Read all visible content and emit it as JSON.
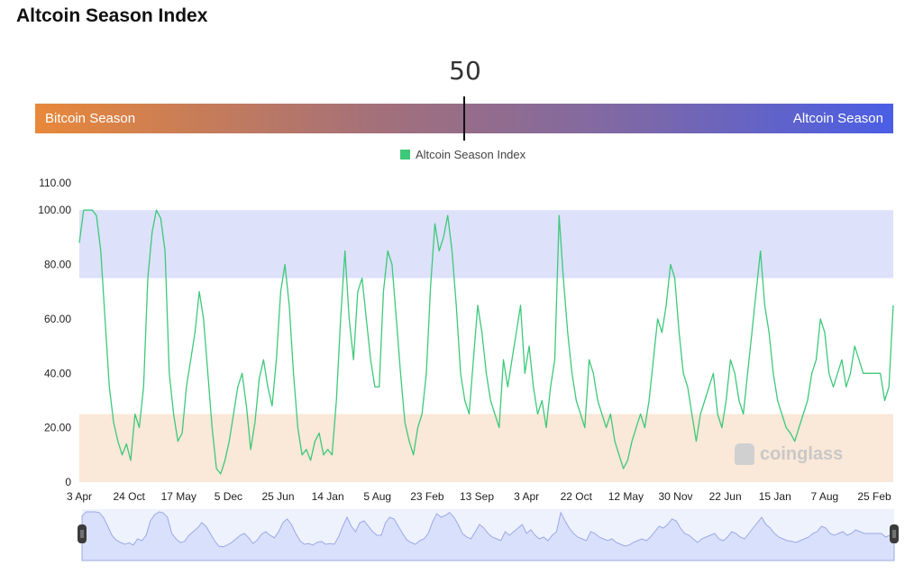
{
  "title": "Altcoin Season Index",
  "gauge": {
    "value": "50",
    "value_num": 50,
    "left_label": "Bitcoin Season",
    "right_label": "Altcoin Season"
  },
  "watermark": "coinglass",
  "colors": {
    "line": "#3ec97a",
    "altcoin_zone": "#dde1fa",
    "bitcoin_zone": "#fae8d8",
    "navigator_fill": "#eef2fd",
    "navigator_line": "#9aa9e6"
  },
  "chart_data": {
    "type": "line",
    "title": "",
    "xlabel": "",
    "ylabel": "",
    "ylim": [
      0,
      110
    ],
    "y_ticks": [
      "0",
      "20.00",
      "40.00",
      "60.00",
      "80.00",
      "100.00",
      "110.00"
    ],
    "x_ticks": [
      "3 Apr",
      "24 Oct",
      "17 May",
      "5 Dec",
      "25 Jun",
      "14 Jan",
      "5 Aug",
      "23 Feb",
      "13 Sep",
      "3 Apr",
      "22 Oct",
      "12 May",
      "30 Nov",
      "22 Jun",
      "15 Jan",
      "7 Aug",
      "25 Feb"
    ],
    "bands": [
      {
        "label": "altcoin-season-zone",
        "from": 75,
        "to": 100
      },
      {
        "label": "bitcoin-season-zone",
        "from": 0,
        "to": 25
      }
    ],
    "series": [
      {
        "name": "Altcoin Season Index",
        "values": [
          88,
          100,
          100,
          100,
          98,
          85,
          60,
          35,
          22,
          15,
          10,
          14,
          8,
          25,
          20,
          35,
          75,
          92,
          100,
          97,
          85,
          40,
          25,
          15,
          18,
          35,
          45,
          55,
          70,
          60,
          40,
          20,
          5,
          3,
          8,
          15,
          25,
          35,
          40,
          28,
          12,
          22,
          38,
          45,
          35,
          28,
          45,
          70,
          80,
          65,
          40,
          20,
          10,
          12,
          8,
          15,
          18,
          10,
          12,
          10,
          30,
          60,
          85,
          60,
          45,
          70,
          75,
          60,
          45,
          35,
          35,
          70,
          85,
          80,
          60,
          40,
          22,
          15,
          10,
          20,
          25,
          40,
          72,
          95,
          85,
          90,
          98,
          85,
          65,
          40,
          30,
          25,
          45,
          65,
          55,
          40,
          30,
          25,
          20,
          45,
          35,
          45,
          55,
          65,
          40,
          50,
          35,
          25,
          30,
          20,
          35,
          45,
          98,
          75,
          55,
          40,
          30,
          25,
          20,
          45,
          40,
          30,
          25,
          20,
          25,
          15,
          10,
          5,
          8,
          15,
          20,
          25,
          20,
          30,
          45,
          60,
          55,
          65,
          80,
          75,
          55,
          40,
          35,
          25,
          15,
          25,
          30,
          35,
          40,
          25,
          20,
          30,
          45,
          40,
          30,
          25,
          40,
          55,
          70,
          85,
          65,
          55,
          40,
          30,
          25,
          20,
          18,
          15,
          20,
          25,
          30,
          40,
          45,
          60,
          55,
          40,
          35,
          40,
          45,
          35,
          40,
          50,
          45,
          40,
          40,
          40,
          40,
          40,
          30,
          35,
          65
        ]
      }
    ]
  }
}
